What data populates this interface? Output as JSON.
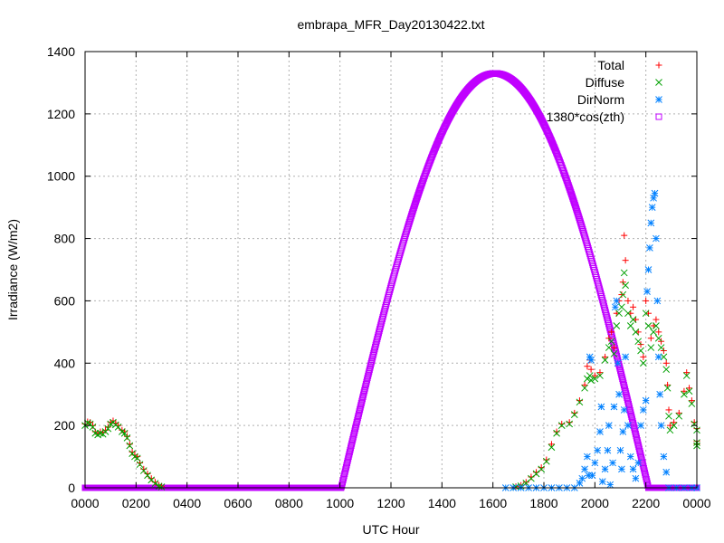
{
  "chart_data": {
    "type": "scatter",
    "title": "embrapa_MFR_Day20130422.txt",
    "xlabel": "UTC Hour",
    "ylabel": "Irradiance (W/m2)",
    "xlim": [
      0,
      24
    ],
    "ylim": [
      0,
      1400
    ],
    "grid": true,
    "legend_position": "top-right",
    "xticks": [
      {
        "v": 0,
        "label": "0000"
      },
      {
        "v": 2,
        "label": "0200"
      },
      {
        "v": 4,
        "label": "0400"
      },
      {
        "v": 6,
        "label": "0600"
      },
      {
        "v": 8,
        "label": "0800"
      },
      {
        "v": 10,
        "label": "1000"
      },
      {
        "v": 12,
        "label": "1200"
      },
      {
        "v": 14,
        "label": "1400"
      },
      {
        "v": 16,
        "label": "1600"
      },
      {
        "v": 18,
        "label": "1800"
      },
      {
        "v": 20,
        "label": "2000"
      },
      {
        "v": 22,
        "label": "2200"
      },
      {
        "v": 24,
        "label": "0000"
      }
    ],
    "yticks": [
      0,
      200,
      400,
      600,
      800,
      1000,
      1200,
      1400
    ],
    "series": [
      {
        "name": "Total",
        "marker": "plus",
        "color": "#ff0000",
        "points": [
          [
            0.0,
            205
          ],
          [
            0.1,
            212
          ],
          [
            0.2,
            210
          ],
          [
            0.3,
            200
          ],
          [
            0.4,
            180
          ],
          [
            0.5,
            175
          ],
          [
            0.6,
            180
          ],
          [
            0.7,
            178
          ],
          [
            0.8,
            185
          ],
          [
            0.9,
            195
          ],
          [
            1.0,
            210
          ],
          [
            1.1,
            215
          ],
          [
            1.2,
            208
          ],
          [
            1.3,
            200
          ],
          [
            1.45,
            185
          ],
          [
            1.55,
            180
          ],
          [
            1.65,
            165
          ],
          [
            1.75,
            140
          ],
          [
            1.85,
            115
          ],
          [
            1.95,
            105
          ],
          [
            2.05,
            100
          ],
          [
            2.15,
            80
          ],
          [
            2.3,
            60
          ],
          [
            2.45,
            45
          ],
          [
            2.6,
            30
          ],
          [
            2.75,
            18
          ],
          [
            2.9,
            8
          ],
          [
            3.0,
            5
          ],
          [
            16.9,
            4
          ],
          [
            17.1,
            8
          ],
          [
            17.3,
            18
          ],
          [
            17.5,
            35
          ],
          [
            17.7,
            50
          ],
          [
            17.9,
            65
          ],
          [
            18.1,
            90
          ],
          [
            18.3,
            140
          ],
          [
            18.5,
            180
          ],
          [
            18.7,
            205
          ],
          [
            19.0,
            210
          ],
          [
            19.2,
            240
          ],
          [
            19.4,
            280
          ],
          [
            19.6,
            330
          ],
          [
            19.7,
            390
          ],
          [
            19.8,
            410
          ],
          [
            19.85,
            380
          ],
          [
            20.0,
            360
          ],
          [
            20.2,
            370
          ],
          [
            20.4,
            420
          ],
          [
            20.55,
            480
          ],
          [
            20.65,
            500
          ],
          [
            20.75,
            450
          ],
          [
            20.85,
            560
          ],
          [
            20.95,
            600
          ],
          [
            21.05,
            620
          ],
          [
            21.1,
            660
          ],
          [
            21.15,
            810
          ],
          [
            21.2,
            730
          ],
          [
            21.3,
            600
          ],
          [
            21.4,
            560
          ],
          [
            21.5,
            580
          ],
          [
            21.6,
            540
          ],
          [
            21.7,
            500
          ],
          [
            21.8,
            460
          ],
          [
            21.9,
            420
          ],
          [
            22.0,
            600
          ],
          [
            22.1,
            560
          ],
          [
            22.2,
            480
          ],
          [
            22.3,
            520
          ],
          [
            22.4,
            540
          ],
          [
            22.5,
            500
          ],
          [
            22.6,
            470
          ],
          [
            22.7,
            440
          ],
          [
            22.8,
            400
          ],
          [
            22.85,
            330
          ],
          [
            22.9,
            250
          ],
          [
            22.95,
            200
          ],
          [
            23.1,
            210
          ],
          [
            23.3,
            240
          ],
          [
            23.5,
            310
          ],
          [
            23.6,
            370
          ],
          [
            23.7,
            320
          ],
          [
            23.8,
            280
          ],
          [
            23.9,
            210
          ],
          [
            24.0,
            190
          ],
          [
            24.1,
            150
          ],
          [
            24.2,
            140
          ]
        ]
      },
      {
        "name": "Diffuse",
        "marker": "cross",
        "color": "#00a000",
        "points": [
          [
            0.0,
            200
          ],
          [
            0.1,
            208
          ],
          [
            0.2,
            205
          ],
          [
            0.3,
            195
          ],
          [
            0.4,
            175
          ],
          [
            0.5,
            170
          ],
          [
            0.6,
            175
          ],
          [
            0.7,
            172
          ],
          [
            0.8,
            180
          ],
          [
            0.9,
            190
          ],
          [
            1.0,
            205
          ],
          [
            1.1,
            210
          ],
          [
            1.2,
            202
          ],
          [
            1.3,
            195
          ],
          [
            1.45,
            180
          ],
          [
            1.55,
            175
          ],
          [
            1.65,
            160
          ],
          [
            1.75,
            135
          ],
          [
            1.85,
            110
          ],
          [
            1.95,
            100
          ],
          [
            2.05,
            95
          ],
          [
            2.15,
            75
          ],
          [
            2.3,
            55
          ],
          [
            2.45,
            40
          ],
          [
            2.6,
            25
          ],
          [
            2.75,
            14
          ],
          [
            2.9,
            5
          ],
          [
            3.0,
            3
          ],
          [
            16.9,
            3
          ],
          [
            17.1,
            6
          ],
          [
            17.3,
            15
          ],
          [
            17.5,
            30
          ],
          [
            17.7,
            45
          ],
          [
            17.9,
            60
          ],
          [
            18.1,
            85
          ],
          [
            18.3,
            130
          ],
          [
            18.5,
            175
          ],
          [
            18.7,
            200
          ],
          [
            19.0,
            205
          ],
          [
            19.2,
            235
          ],
          [
            19.4,
            275
          ],
          [
            19.6,
            320
          ],
          [
            19.7,
            350
          ],
          [
            19.8,
            360
          ],
          [
            19.85,
            345
          ],
          [
            20.0,
            350
          ],
          [
            20.2,
            360
          ],
          [
            20.4,
            410
          ],
          [
            20.55,
            450
          ],
          [
            20.65,
            470
          ],
          [
            20.75,
            430
          ],
          [
            20.85,
            520
          ],
          [
            20.95,
            560
          ],
          [
            21.05,
            580
          ],
          [
            21.1,
            620
          ],
          [
            21.15,
            690
          ],
          [
            21.2,
            650
          ],
          [
            21.3,
            560
          ],
          [
            21.4,
            520
          ],
          [
            21.5,
            540
          ],
          [
            21.6,
            500
          ],
          [
            21.7,
            470
          ],
          [
            21.8,
            440
          ],
          [
            21.9,
            400
          ],
          [
            22.0,
            560
          ],
          [
            22.1,
            520
          ],
          [
            22.2,
            450
          ],
          [
            22.3,
            500
          ],
          [
            22.4,
            520
          ],
          [
            22.5,
            480
          ],
          [
            22.6,
            450
          ],
          [
            22.7,
            420
          ],
          [
            22.8,
            380
          ],
          [
            22.85,
            320
          ],
          [
            22.9,
            230
          ],
          [
            22.95,
            185
          ],
          [
            23.1,
            200
          ],
          [
            23.3,
            230
          ],
          [
            23.5,
            300
          ],
          [
            23.6,
            360
          ],
          [
            23.7,
            310
          ],
          [
            23.8,
            270
          ],
          [
            23.9,
            205
          ],
          [
            24.0,
            185
          ],
          [
            24.1,
            145
          ],
          [
            24.2,
            135
          ]
        ]
      },
      {
        "name": "DirNorm",
        "marker": "star",
        "color": "#0080ff",
        "points": [
          [
            16.5,
            0
          ],
          [
            16.8,
            0
          ],
          [
            17.1,
            0
          ],
          [
            17.4,
            0
          ],
          [
            17.7,
            0
          ],
          [
            18.0,
            0
          ],
          [
            18.3,
            0
          ],
          [
            18.6,
            0
          ],
          [
            18.9,
            0
          ],
          [
            19.2,
            0
          ],
          [
            19.4,
            15
          ],
          [
            19.5,
            30
          ],
          [
            19.6,
            60
          ],
          [
            19.7,
            100
          ],
          [
            19.75,
            40
          ],
          [
            19.8,
            420
          ],
          [
            19.85,
            410
          ],
          [
            19.9,
            40
          ],
          [
            20.0,
            80
          ],
          [
            20.1,
            120
          ],
          [
            20.2,
            180
          ],
          [
            20.25,
            260
          ],
          [
            20.3,
            20
          ],
          [
            20.4,
            60
          ],
          [
            20.5,
            120
          ],
          [
            20.55,
            200
          ],
          [
            20.6,
            10
          ],
          [
            20.7,
            80
          ],
          [
            20.75,
            260
          ],
          [
            20.8,
            580
          ],
          [
            20.85,
            600
          ],
          [
            20.9,
            400
          ],
          [
            20.95,
            300
          ],
          [
            21.0,
            120
          ],
          [
            21.05,
            60
          ],
          [
            21.1,
            180
          ],
          [
            21.15,
            250
          ],
          [
            21.2,
            420
          ],
          [
            21.3,
            200
          ],
          [
            21.4,
            100
          ],
          [
            21.5,
            60
          ],
          [
            21.6,
            30
          ],
          [
            21.7,
            80
          ],
          [
            21.8,
            200
          ],
          [
            21.9,
            250
          ],
          [
            22.0,
            280
          ],
          [
            22.05,
            630
          ],
          [
            22.1,
            700
          ],
          [
            22.15,
            770
          ],
          [
            22.2,
            850
          ],
          [
            22.25,
            900
          ],
          [
            22.3,
            930
          ],
          [
            22.35,
            945
          ],
          [
            22.4,
            800
          ],
          [
            22.45,
            600
          ],
          [
            22.5,
            420
          ],
          [
            22.55,
            300
          ],
          [
            22.6,
            200
          ],
          [
            22.7,
            100
          ],
          [
            22.8,
            50
          ],
          [
            22.9,
            0
          ],
          [
            23.2,
            0
          ],
          [
            23.5,
            0
          ],
          [
            23.8,
            0
          ],
          [
            24.1,
            0
          ]
        ]
      },
      {
        "name": "1380*cos(zth)",
        "marker": "square",
        "color": "#c000ff",
        "amplitude": 1330,
        "rise": 10.05,
        "noon": 16.08,
        "set": 22.1
      }
    ]
  }
}
